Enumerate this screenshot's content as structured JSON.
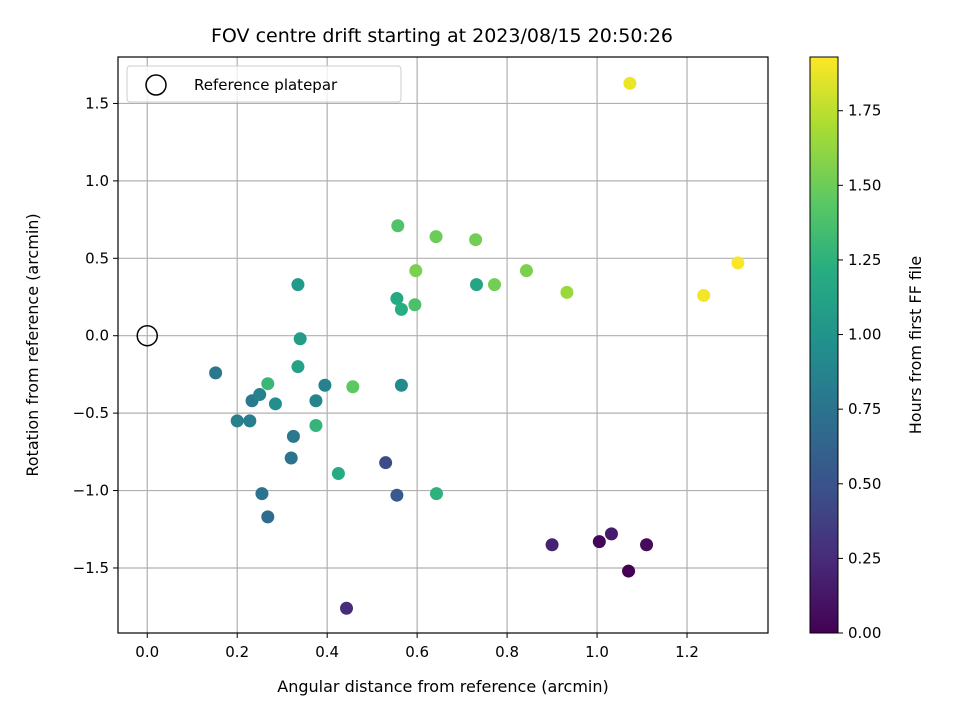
{
  "chart_data": {
    "type": "scatter",
    "title": "FOV centre drift starting at 2023/08/15 20:50:26",
    "xlabel": "Angular distance from reference (arcmin)",
    "ylabel": "Rotation from reference (arcmin)",
    "xlim": [
      -0.065,
      1.38
    ],
    "ylim": [
      -1.92,
      1.8
    ],
    "xticks": [
      0.0,
      0.2,
      0.4,
      0.6,
      0.8,
      1.0,
      1.2
    ],
    "xtick_labels": [
      "0.0",
      "0.2",
      "0.4",
      "0.6",
      "0.8",
      "1.0",
      "1.2"
    ],
    "yticks": [
      -1.5,
      -1.0,
      -0.5,
      0.0,
      0.5,
      1.0,
      1.5
    ],
    "ytick_labels": [
      "−1.5",
      "−1.0",
      "−0.5",
      "0.0",
      "0.5",
      "1.0",
      "1.5"
    ],
    "grid": true,
    "colormap": "viridis",
    "colorbar": {
      "label": "Hours from first FF file",
      "range": [
        0.0,
        1.93
      ],
      "ticks": [
        0.0,
        0.25,
        0.5,
        0.75,
        1.0,
        1.25,
        1.5,
        1.75
      ],
      "tick_labels": [
        "0.00",
        "0.25",
        "0.50",
        "0.75",
        "1.00",
        "1.25",
        "1.50",
        "1.75"
      ]
    },
    "legend": {
      "placement": "top-left",
      "entries": [
        {
          "label": "Reference platepar",
          "marker": "open-circle"
        }
      ]
    },
    "reference_point": {
      "x": 0.0,
      "y": 0.0
    },
    "points": [
      {
        "x": 1.07,
        "y": -1.52,
        "c": 0.0
      },
      {
        "x": 1.005,
        "y": -1.33,
        "c": 0.03
      },
      {
        "x": 1.11,
        "y": -1.35,
        "c": 0.05
      },
      {
        "x": 1.032,
        "y": -1.28,
        "c": 0.15
      },
      {
        "x": 0.9,
        "y": -1.35,
        "c": 0.2
      },
      {
        "x": 0.443,
        "y": -1.76,
        "c": 0.25
      },
      {
        "x": 0.53,
        "y": -0.82,
        "c": 0.45
      },
      {
        "x": 0.555,
        "y": -1.03,
        "c": 0.55
      },
      {
        "x": 0.268,
        "y": -1.17,
        "c": 0.7
      },
      {
        "x": 0.255,
        "y": -1.02,
        "c": 0.75
      },
      {
        "x": 0.32,
        "y": -0.79,
        "c": 0.75
      },
      {
        "x": 0.325,
        "y": -0.65,
        "c": 0.78
      },
      {
        "x": 0.152,
        "y": -0.24,
        "c": 0.78
      },
      {
        "x": 0.233,
        "y": -0.42,
        "c": 0.8
      },
      {
        "x": 0.25,
        "y": -0.38,
        "c": 0.85
      },
      {
        "x": 0.2,
        "y": -0.55,
        "c": 0.85
      },
      {
        "x": 0.228,
        "y": -0.55,
        "c": 0.82
      },
      {
        "x": 0.395,
        "y": -0.32,
        "c": 0.85
      },
      {
        "x": 0.375,
        "y": -0.42,
        "c": 0.88
      },
      {
        "x": 0.565,
        "y": -0.32,
        "c": 0.92
      },
      {
        "x": 0.285,
        "y": -0.44,
        "c": 0.95
      },
      {
        "x": 0.335,
        "y": 0.33,
        "c": 1.05
      },
      {
        "x": 0.34,
        "y": -0.02,
        "c": 1.08
      },
      {
        "x": 0.335,
        "y": -0.2,
        "c": 1.12
      },
      {
        "x": 0.268,
        "y": -0.31,
        "c": 1.3
      },
      {
        "x": 0.425,
        "y": -0.89,
        "c": 1.2
      },
      {
        "x": 0.375,
        "y": -0.58,
        "c": 1.28
      },
      {
        "x": 0.643,
        "y": -1.02,
        "c": 1.25
      },
      {
        "x": 0.555,
        "y": 0.24,
        "c": 1.18
      },
      {
        "x": 0.565,
        "y": 0.17,
        "c": 1.22
      },
      {
        "x": 0.732,
        "y": 0.33,
        "c": 1.15
      },
      {
        "x": 0.595,
        "y": 0.2,
        "c": 1.38
      },
      {
        "x": 0.557,
        "y": 0.71,
        "c": 1.4
      },
      {
        "x": 0.457,
        "y": -0.33,
        "c": 1.45
      },
      {
        "x": 0.642,
        "y": 0.64,
        "c": 1.5
      },
      {
        "x": 0.73,
        "y": 0.62,
        "c": 1.52
      },
      {
        "x": 0.597,
        "y": 0.42,
        "c": 1.55
      },
      {
        "x": 0.772,
        "y": 0.33,
        "c": 1.52
      },
      {
        "x": 0.843,
        "y": 0.42,
        "c": 1.55
      },
      {
        "x": 0.933,
        "y": 0.28,
        "c": 1.65
      },
      {
        "x": 1.073,
        "y": 1.63,
        "c": 1.88
      },
      {
        "x": 1.237,
        "y": 0.26,
        "c": 1.9
      },
      {
        "x": 1.313,
        "y": 0.47,
        "c": 1.92
      }
    ]
  }
}
